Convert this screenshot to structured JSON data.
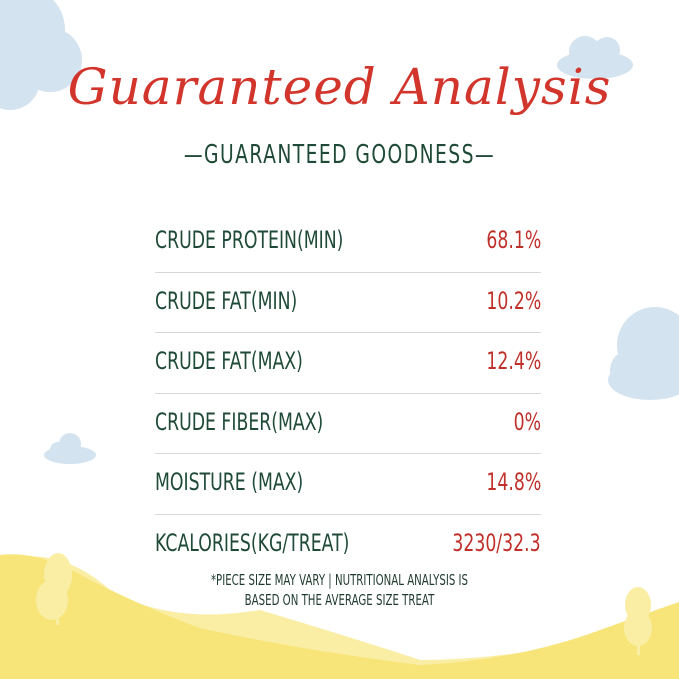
{
  "title": "Guaranteed Analysis",
  "subtitle": "—GUARANTEED GOODNESS—",
  "rows": [
    {
      "label": "CRUDE PROTEIN(MIN)",
      "value": "68.1%"
    },
    {
      "label": "CRUDE FAT(MIN)",
      "value": "10.2%"
    },
    {
      "label": "CRUDE FAT(MAX)",
      "value": "12.4%"
    },
    {
      "label": "CRUDE FIBER(MAX)",
      "value": "0%"
    },
    {
      "label": "MOISTURE (MAX)",
      "value": "14.8%"
    },
    {
      "label": "KCALORIES(KG/TREAT)",
      "value": "3230/32.3"
    }
  ],
  "footnote": {
    "line1": "*PIECE SIZE MAY VARY | NUTRITIONAL ANALYSIS IS",
    "line2": "BASED ON THE AVERAGE SIZE TREAT"
  },
  "colors": {
    "title": "#d2352b",
    "label": "#1f4a37",
    "value": "#c0302a",
    "cloud": "#d3e3f0",
    "hill": "#f7e57a"
  }
}
